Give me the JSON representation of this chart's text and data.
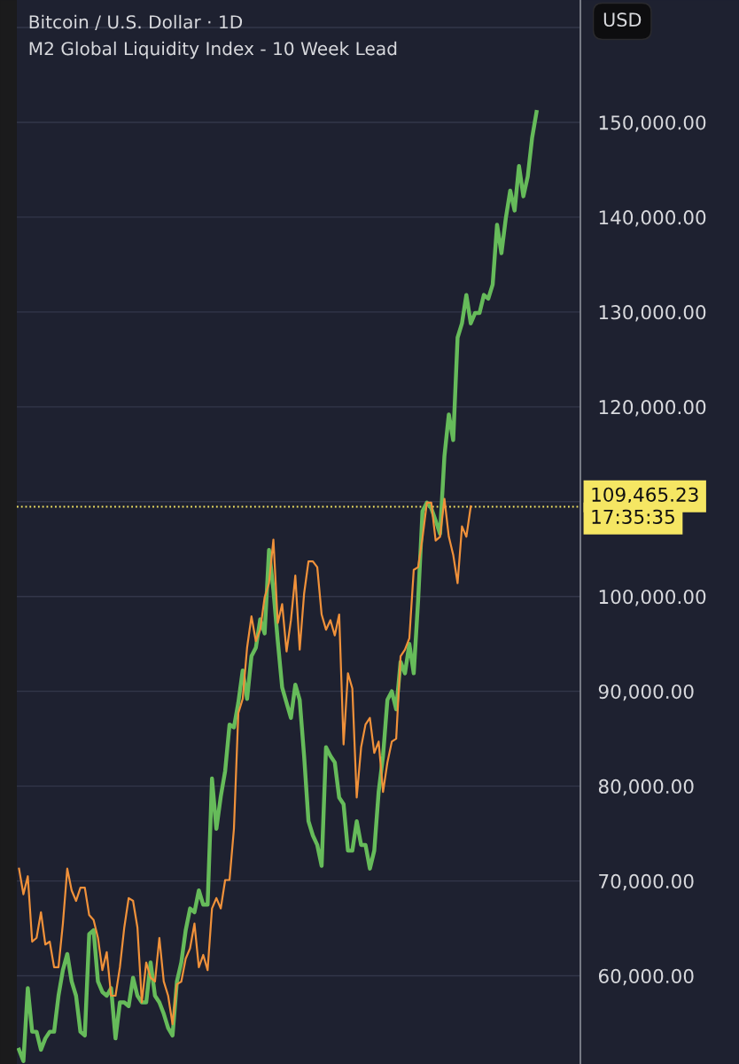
{
  "chart_data": {
    "type": "line",
    "title": "Bitcoin / U.S. Dollar · 1D",
    "subtitle": "M2 Global Liquidity Index - 10 Week Lead",
    "annotations": [
      "USD",
      "17:35:35"
    ],
    "categories": [
      null,
      null,
      null,
      null,
      null,
      null,
      null,
      null,
      null,
      null,
      null,
      null,
      null,
      null,
      null,
      null,
      null,
      null,
      null,
      null,
      null,
      null,
      null,
      null,
      null,
      null,
      null,
      null,
      null,
      null,
      null,
      null,
      null,
      null,
      null,
      null,
      null,
      null,
      null,
      null,
      null,
      null,
      null,
      null,
      null,
      null,
      null,
      null,
      null,
      null,
      null,
      null,
      null,
      null,
      null,
      null,
      null,
      null,
      null,
      null,
      null,
      null,
      null,
      null,
      null,
      null,
      null,
      null,
      null,
      null,
      null,
      null,
      null,
      null,
      null,
      null,
      null,
      null,
      null,
      null,
      null,
      null,
      null,
      null,
      null,
      null,
      null,
      null,
      null,
      null,
      null,
      null,
      null,
      null,
      null,
      null,
      null,
      null,
      null,
      null,
      null,
      null,
      null,
      null,
      null,
      null,
      null,
      null,
      null,
      null,
      null,
      null,
      null,
      null,
      null,
      null,
      null,
      null,
      null,
      null,
      null,
      null,
      null,
      null,
      null,
      null,
      null,
      null
    ],
    "series": [
      {
        "color": "#66bb5a",
        "values": [
          52200,
          51000,
          58700,
          54100,
          54100,
          52200,
          53400,
          54100,
          54100,
          57900,
          60600,
          62300,
          59400,
          57900,
          54100,
          53700,
          64400,
          64800,
          59400,
          58300,
          57900,
          58700,
          53400,
          57200,
          57200,
          56800,
          59800,
          57900,
          57200,
          57200,
          61400,
          57900,
          57200,
          56000,
          54500,
          53700,
          59400,
          61400,
          64800,
          67100,
          66700,
          69000,
          67500,
          67500,
          80800,
          75500,
          78900,
          81600,
          86500,
          86200,
          88800,
          92200,
          89200,
          93700,
          94600,
          97600,
          96100,
          104900,
          100700,
          95300,
          90400,
          88800,
          87200,
          90700,
          89100,
          83200,
          76300,
          74800,
          73800,
          71600,
          84100,
          83200,
          82500,
          78800,
          78100,
          73200,
          73200,
          76300,
          73800,
          73800,
          71300,
          73200,
          79400,
          83200,
          89100,
          90000,
          88100,
          93100,
          91900,
          95000,
          91900,
          99600,
          109000,
          109900,
          109300,
          108000,
          106600,
          114800,
          119200,
          116500,
          127300,
          128800,
          131800,
          128800,
          129900,
          129900,
          131800,
          131400,
          132900,
          139200,
          136200,
          139900,
          142800,
          140700,
          145400,
          142200,
          144300,
          148400,
          151100,
          null,
          null,
          null,
          null,
          null,
          null,
          null,
          null,
          null
        ]
      },
      {
        "color": "#f0913a",
        "values": [
          71300,
          68600,
          70500,
          63600,
          64000,
          66700,
          63300,
          63600,
          60900,
          60900,
          65500,
          71300,
          69000,
          67900,
          69300,
          69300,
          66400,
          65900,
          64000,
          60600,
          62500,
          57900,
          57900,
          60900,
          65100,
          68200,
          67900,
          65100,
          57200,
          61400,
          59800,
          59400,
          64000,
          59400,
          57900,
          54900,
          59100,
          59400,
          61800,
          62900,
          65500,
          60900,
          62200,
          60600,
          67100,
          68200,
          67100,
          70100,
          70100,
          75500,
          87700,
          89200,
          94600,
          97900,
          95300,
          96500,
          99900,
          101400,
          106000,
          97200,
          99200,
          94200,
          97500,
          102200,
          94400,
          100300,
          103700,
          103700,
          103100,
          98100,
          96500,
          97500,
          95900,
          98100,
          84400,
          91900,
          90300,
          78800,
          84100,
          86500,
          87200,
          83500,
          84700,
          79400,
          82500,
          84700,
          85000,
          93700,
          94400,
          95600,
          102800,
          103100,
          106200,
          109900,
          109900,
          105900,
          106300,
          110300,
          106300,
          104400,
          101400,
          107400,
          106300,
          109500,
          null,
          null,
          null,
          null,
          null,
          null,
          null,
          null,
          null,
          null,
          null,
          null,
          null,
          null,
          null,
          null,
          null,
          null,
          null,
          null,
          null,
          null,
          null,
          null
        ]
      }
    ],
    "ylim": [
      50700,
      162900
    ],
    "yticks": [
      {
        "value": 60000,
        "label": "60,000.00"
      },
      {
        "value": 70000,
        "label": "70,000.00"
      },
      {
        "value": 80000,
        "label": "80,000.00"
      },
      {
        "value": 90000,
        "label": "90,000.00"
      },
      {
        "value": 100000,
        "label": "100,000.00"
      },
      {
        "value": 110000,
        "label": null
      },
      {
        "value": 120000,
        "label": "120,000.00"
      },
      {
        "value": 130000,
        "label": "130,000.00"
      },
      {
        "value": 140000,
        "label": "140,000.00"
      },
      {
        "value": 150000,
        "label": "150,000.00"
      },
      {
        "value": 160000,
        "label": null
      }
    ],
    "ref_lines": [
      {
        "axis": "y",
        "value": 109465.23,
        "label": "109,465.23",
        "color": "#f5e663",
        "line_style": "dotted"
      }
    ],
    "grid": "y",
    "tick_labels": "y"
  }
}
